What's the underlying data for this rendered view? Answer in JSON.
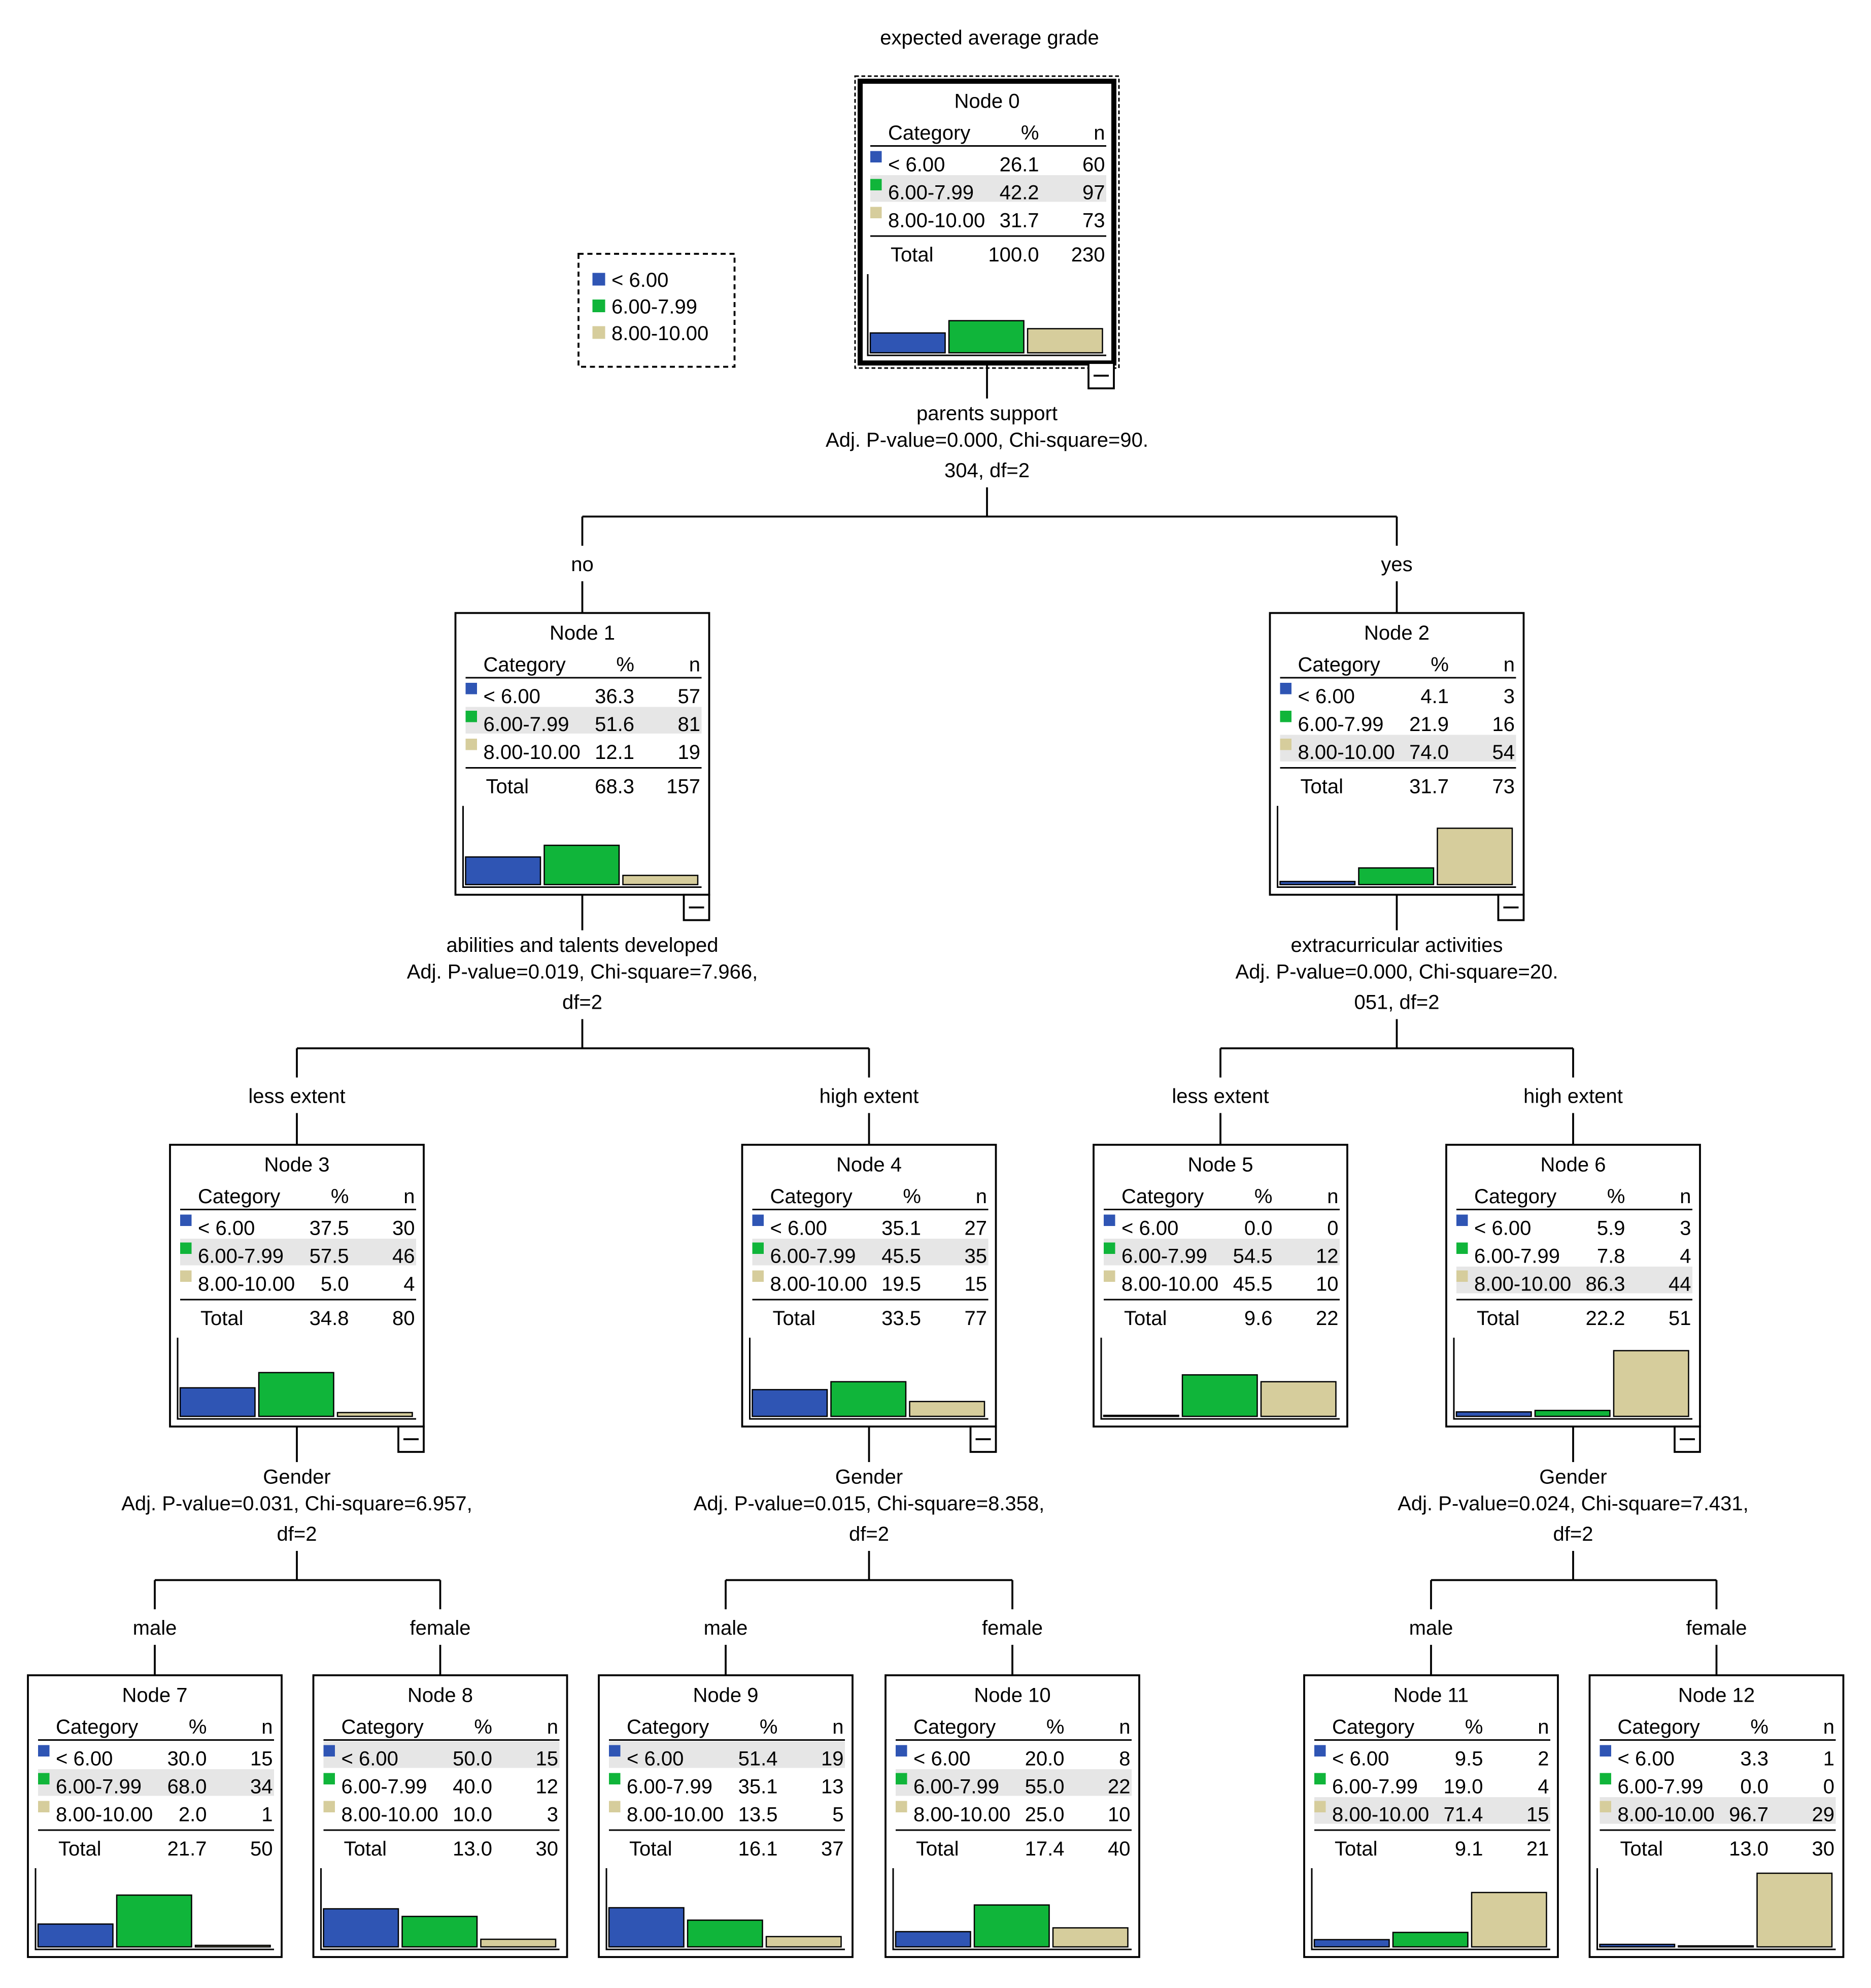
{
  "title": "expected average grade",
  "colors": {
    "cat_lt6": "#2f55b4",
    "cat_6to8": "#10b53a",
    "cat_8to10": "#d6cd9c",
    "highlight_row": "#e6e6e6"
  },
  "legend": [
    {
      "label": "< 6.00",
      "color": "#2f55b4"
    },
    {
      "label": "6.00-7.99",
      "color": "#10b53a"
    },
    {
      "label": "8.00-10.00",
      "color": "#d6cd9c"
    }
  ],
  "table_headers": {
    "category": "Category",
    "percent": "%",
    "n": "n",
    "total": "Total"
  },
  "nodes": [
    {
      "id": 0,
      "label": "Node 0",
      "rows": [
        {
          "cat": "< 6.00",
          "pct": "26.1",
          "n": "60"
        },
        {
          "cat": "6.00-7.99",
          "pct": "42.2",
          "n": "97"
        },
        {
          "cat": "8.00-10.00",
          "pct": "31.7",
          "n": "73"
        }
      ],
      "total_pct": "100.0",
      "total_n": "230",
      "highlight": 1,
      "collapse_icon": true
    },
    {
      "id": 1,
      "label": "Node 1",
      "rows": [
        {
          "cat": "< 6.00",
          "pct": "36.3",
          "n": "57"
        },
        {
          "cat": "6.00-7.99",
          "pct": "51.6",
          "n": "81"
        },
        {
          "cat": "8.00-10.00",
          "pct": "12.1",
          "n": "19"
        }
      ],
      "total_pct": "68.3",
      "total_n": "157",
      "highlight": 1,
      "collapse_icon": true
    },
    {
      "id": 2,
      "label": "Node 2",
      "rows": [
        {
          "cat": "< 6.00",
          "pct": "4.1",
          "n": "3"
        },
        {
          "cat": "6.00-7.99",
          "pct": "21.9",
          "n": "16"
        },
        {
          "cat": "8.00-10.00",
          "pct": "74.0",
          "n": "54"
        }
      ],
      "total_pct": "31.7",
      "total_n": "73",
      "highlight": 2,
      "collapse_icon": true
    },
    {
      "id": 3,
      "label": "Node 3",
      "rows": [
        {
          "cat": "< 6.00",
          "pct": "37.5",
          "n": "30"
        },
        {
          "cat": "6.00-7.99",
          "pct": "57.5",
          "n": "46"
        },
        {
          "cat": "8.00-10.00",
          "pct": "5.0",
          "n": "4"
        }
      ],
      "total_pct": "34.8",
      "total_n": "80",
      "highlight": 1,
      "collapse_icon": true
    },
    {
      "id": 4,
      "label": "Node 4",
      "rows": [
        {
          "cat": "< 6.00",
          "pct": "35.1",
          "n": "27"
        },
        {
          "cat": "6.00-7.99",
          "pct": "45.5",
          "n": "35"
        },
        {
          "cat": "8.00-10.00",
          "pct": "19.5",
          "n": "15"
        }
      ],
      "total_pct": "33.5",
      "total_n": "77",
      "highlight": 1,
      "collapse_icon": true
    },
    {
      "id": 5,
      "label": "Node 5",
      "rows": [
        {
          "cat": "< 6.00",
          "pct": "0.0",
          "n": "0"
        },
        {
          "cat": "6.00-7.99",
          "pct": "54.5",
          "n": "12"
        },
        {
          "cat": "8.00-10.00",
          "pct": "45.5",
          "n": "10"
        }
      ],
      "total_pct": "9.6",
      "total_n": "22",
      "highlight": 1,
      "collapse_icon": false
    },
    {
      "id": 6,
      "label": "Node 6",
      "rows": [
        {
          "cat": "< 6.00",
          "pct": "5.9",
          "n": "3"
        },
        {
          "cat": "6.00-7.99",
          "pct": "7.8",
          "n": "4"
        },
        {
          "cat": "8.00-10.00",
          "pct": "86.3",
          "n": "44"
        }
      ],
      "total_pct": "22.2",
      "total_n": "51",
      "highlight": 2,
      "collapse_icon": true
    },
    {
      "id": 7,
      "label": "Node 7",
      "rows": [
        {
          "cat": "< 6.00",
          "pct": "30.0",
          "n": "15"
        },
        {
          "cat": "6.00-7.99",
          "pct": "68.0",
          "n": "34"
        },
        {
          "cat": "8.00-10.00",
          "pct": "2.0",
          "n": "1"
        }
      ],
      "total_pct": "21.7",
      "total_n": "50",
      "highlight": 1,
      "collapse_icon": false
    },
    {
      "id": 8,
      "label": "Node 8",
      "rows": [
        {
          "cat": "< 6.00",
          "pct": "50.0",
          "n": "15"
        },
        {
          "cat": "6.00-7.99",
          "pct": "40.0",
          "n": "12"
        },
        {
          "cat": "8.00-10.00",
          "pct": "10.0",
          "n": "3"
        }
      ],
      "total_pct": "13.0",
      "total_n": "30",
      "highlight": 0,
      "collapse_icon": false
    },
    {
      "id": 9,
      "label": "Node 9",
      "rows": [
        {
          "cat": "< 6.00",
          "pct": "51.4",
          "n": "19"
        },
        {
          "cat": "6.00-7.99",
          "pct": "35.1",
          "n": "13"
        },
        {
          "cat": "8.00-10.00",
          "pct": "13.5",
          "n": "5"
        }
      ],
      "total_pct": "16.1",
      "total_n": "37",
      "highlight": 0,
      "collapse_icon": false
    },
    {
      "id": 10,
      "label": "Node 10",
      "rows": [
        {
          "cat": "< 6.00",
          "pct": "20.0",
          "n": "8"
        },
        {
          "cat": "6.00-7.99",
          "pct": "55.0",
          "n": "22"
        },
        {
          "cat": "8.00-10.00",
          "pct": "25.0",
          "n": "10"
        }
      ],
      "total_pct": "17.4",
      "total_n": "40",
      "highlight": 1,
      "collapse_icon": false
    },
    {
      "id": 11,
      "label": "Node 11",
      "rows": [
        {
          "cat": "< 6.00",
          "pct": "9.5",
          "n": "2"
        },
        {
          "cat": "6.00-7.99",
          "pct": "19.0",
          "n": "4"
        },
        {
          "cat": "8.00-10.00",
          "pct": "71.4",
          "n": "15"
        }
      ],
      "total_pct": "9.1",
      "total_n": "21",
      "highlight": 2,
      "collapse_icon": false
    },
    {
      "id": 12,
      "label": "Node 12",
      "rows": [
        {
          "cat": "< 6.00",
          "pct": "3.3",
          "n": "1"
        },
        {
          "cat": "6.00-7.99",
          "pct": "0.0",
          "n": "0"
        },
        {
          "cat": "8.00-10.00",
          "pct": "96.7",
          "n": "29"
        }
      ],
      "total_pct": "13.0",
      "total_n": "30",
      "highlight": 2,
      "collapse_icon": false
    }
  ],
  "splits": [
    {
      "parent": 0,
      "lines": [
        "parents support",
        "Adj. P-value=0.000, Chi-square=90.",
        "304, df=2"
      ],
      "branches": [
        {
          "child": 1,
          "label": "no"
        },
        {
          "child": 2,
          "label": "yes"
        }
      ]
    },
    {
      "parent": 1,
      "lines": [
        "abilities and talents developed",
        "Adj. P-value=0.019, Chi-square=7.966,",
        "df=2"
      ],
      "branches": [
        {
          "child": 3,
          "label": "less extent"
        },
        {
          "child": 4,
          "label": "high extent"
        }
      ]
    },
    {
      "parent": 2,
      "lines": [
        "extracurricular activities",
        "Adj. P-value=0.000, Chi-square=20.",
        "051, df=2"
      ],
      "branches": [
        {
          "child": 5,
          "label": "less extent"
        },
        {
          "child": 6,
          "label": "high extent"
        }
      ]
    },
    {
      "parent": 3,
      "lines": [
        "Gender",
        "Adj. P-value=0.031, Chi-square=6.957,",
        "df=2"
      ],
      "branches": [
        {
          "child": 7,
          "label": "male"
        },
        {
          "child": 8,
          "label": "female"
        }
      ]
    },
    {
      "parent": 4,
      "lines": [
        "Gender",
        "Adj. P-value=0.015, Chi-square=8.358,",
        "df=2"
      ],
      "branches": [
        {
          "child": 9,
          "label": "male"
        },
        {
          "child": 10,
          "label": "female"
        }
      ]
    },
    {
      "parent": 6,
      "lines": [
        "Gender",
        "Adj. P-value=0.024, Chi-square=7.431,",
        "df=2"
      ],
      "branches": [
        {
          "child": 11,
          "label": "male"
        },
        {
          "child": 12,
          "label": "female"
        }
      ]
    }
  ]
}
